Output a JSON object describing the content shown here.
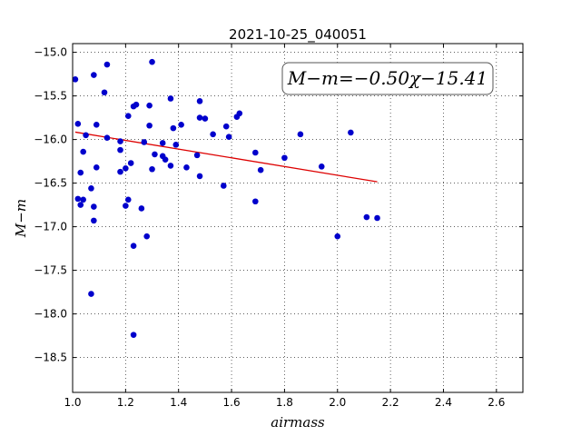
{
  "chart_data": {
    "type": "scatter",
    "title": "2021-10-25_040051",
    "xlabel": "airmass",
    "ylabel": "M−m",
    "xlim": [
      1.0,
      2.7
    ],
    "ylim": [
      -18.9,
      -14.9
    ],
    "y_inverted": true,
    "grid": true,
    "xticks": [
      1.0,
      1.2,
      1.4,
      1.6,
      1.8,
      2.0,
      2.2,
      2.4,
      2.6
    ],
    "yticks": [
      -15.0,
      -15.5,
      -16.0,
      -16.5,
      -17.0,
      -17.5,
      -18.0,
      -18.5
    ],
    "xtick_labels": [
      "1.0",
      "1.2",
      "1.4",
      "1.6",
      "1.8",
      "2.0",
      "2.2",
      "2.4",
      "2.6"
    ],
    "ytick_labels": [
      "−15.0",
      "−15.5",
      "−16.0",
      "−16.5",
      "−17.0",
      "−17.5",
      "−18.0",
      "−18.5"
    ],
    "annotation": "M−m=−0.50χ−15.41",
    "annotation_location": "top-right",
    "point_color": "#0000cc",
    "fit_color": "#dd0000",
    "fit": {
      "slope": -0.5,
      "intercept": -15.41,
      "x_range": [
        1.01,
        2.15
      ]
    },
    "points": [
      {
        "x": 1.01,
        "y": -15.31
      },
      {
        "x": 1.02,
        "y": -15.82
      },
      {
        "x": 1.02,
        "y": -16.68
      },
      {
        "x": 1.03,
        "y": -16.38
      },
      {
        "x": 1.03,
        "y": -16.75
      },
      {
        "x": 1.04,
        "y": -16.69
      },
      {
        "x": 1.04,
        "y": -16.14
      },
      {
        "x": 1.05,
        "y": -15.95
      },
      {
        "x": 1.07,
        "y": -16.56
      },
      {
        "x": 1.07,
        "y": -17.77
      },
      {
        "x": 1.08,
        "y": -16.93
      },
      {
        "x": 1.08,
        "y": -16.77
      },
      {
        "x": 1.08,
        "y": -15.26
      },
      {
        "x": 1.09,
        "y": -15.83
      },
      {
        "x": 1.09,
        "y": -16.32
      },
      {
        "x": 1.12,
        "y": -15.46
      },
      {
        "x": 1.13,
        "y": -15.14
      },
      {
        "x": 1.13,
        "y": -15.98
      },
      {
        "x": 1.18,
        "y": -16.02
      },
      {
        "x": 1.18,
        "y": -16.12
      },
      {
        "x": 1.18,
        "y": -16.37
      },
      {
        "x": 1.2,
        "y": -16.33
      },
      {
        "x": 1.2,
        "y": -16.76
      },
      {
        "x": 1.21,
        "y": -16.69
      },
      {
        "x": 1.21,
        "y": -15.73
      },
      {
        "x": 1.22,
        "y": -16.27
      },
      {
        "x": 1.23,
        "y": -15.62
      },
      {
        "x": 1.23,
        "y": -17.22
      },
      {
        "x": 1.23,
        "y": -18.24
      },
      {
        "x": 1.24,
        "y": -15.6
      },
      {
        "x": 1.26,
        "y": -16.79
      },
      {
        "x": 1.27,
        "y": -16.03
      },
      {
        "x": 1.28,
        "y": -17.11
      },
      {
        "x": 1.29,
        "y": -15.61
      },
      {
        "x": 1.29,
        "y": -15.84
      },
      {
        "x": 1.3,
        "y": -16.34
      },
      {
        "x": 1.3,
        "y": -15.11
      },
      {
        "x": 1.31,
        "y": -16.17
      },
      {
        "x": 1.34,
        "y": -16.04
      },
      {
        "x": 1.34,
        "y": -16.19
      },
      {
        "x": 1.35,
        "y": -16.23
      },
      {
        "x": 1.37,
        "y": -15.53
      },
      {
        "x": 1.37,
        "y": -16.3
      },
      {
        "x": 1.38,
        "y": -15.87
      },
      {
        "x": 1.39,
        "y": -16.06
      },
      {
        "x": 1.41,
        "y": -15.83
      },
      {
        "x": 1.43,
        "y": -16.32
      },
      {
        "x": 1.47,
        "y": -16.18
      },
      {
        "x": 1.48,
        "y": -15.56
      },
      {
        "x": 1.48,
        "y": -15.75
      },
      {
        "x": 1.48,
        "y": -16.42
      },
      {
        "x": 1.5,
        "y": -15.76
      },
      {
        "x": 1.53,
        "y": -15.94
      },
      {
        "x": 1.57,
        "y": -16.53
      },
      {
        "x": 1.58,
        "y": -15.85
      },
      {
        "x": 1.59,
        "y": -15.97
      },
      {
        "x": 1.62,
        "y": -15.74
      },
      {
        "x": 1.63,
        "y": -15.7
      },
      {
        "x": 1.69,
        "y": -16.15
      },
      {
        "x": 1.69,
        "y": -16.71
      },
      {
        "x": 1.71,
        "y": -16.35
      },
      {
        "x": 1.8,
        "y": -16.21
      },
      {
        "x": 1.86,
        "y": -15.94
      },
      {
        "x": 1.94,
        "y": -16.31
      },
      {
        "x": 2.0,
        "y": -17.11
      },
      {
        "x": 2.05,
        "y": -15.92
      },
      {
        "x": 2.11,
        "y": -16.89
      },
      {
        "x": 2.15,
        "y": -16.9
      }
    ]
  }
}
